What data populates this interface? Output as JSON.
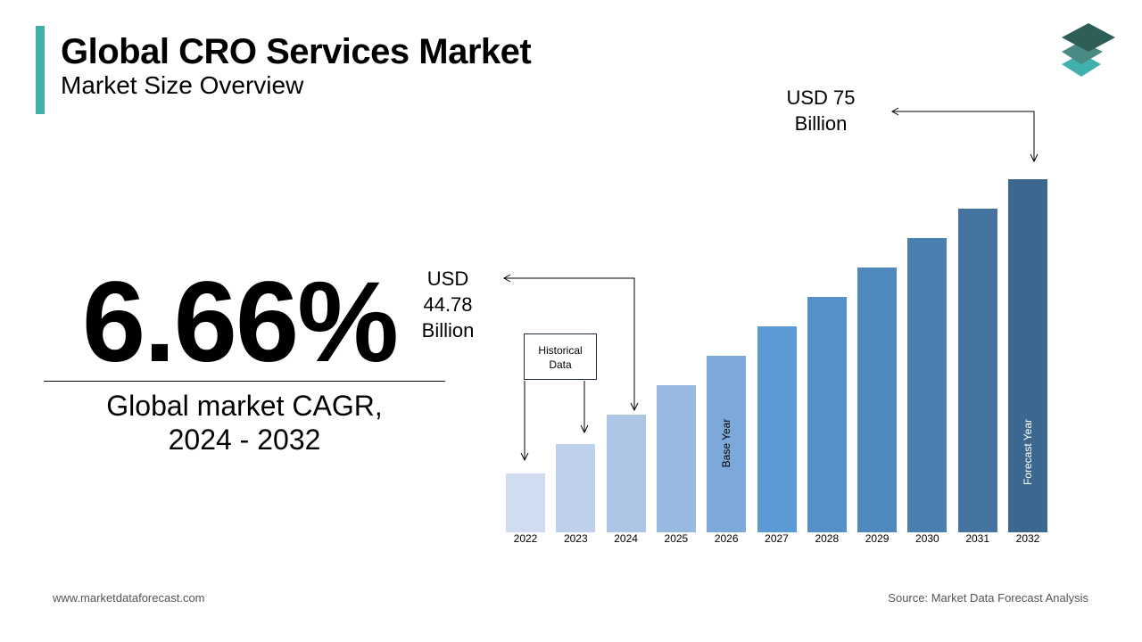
{
  "header": {
    "title": "Global CRO Services Market",
    "subtitle": "Market Size Overview"
  },
  "highlight": {
    "cagr": "6.66%",
    "label_line1": "Global market CAGR,",
    "label_line2": "2024 - 2032"
  },
  "annotations": {
    "value_2024": [
      "USD",
      "44.78",
      "Billion"
    ],
    "value_2032": [
      "USD 75",
      "Billion"
    ],
    "historical": [
      "Historical",
      "Data"
    ],
    "base_year": "Base Year",
    "forecast_year": "Forecast Year"
  },
  "footer": {
    "website": "www.marketdataforecast.com",
    "source": "Source: Market Data Forecast Analysis"
  },
  "colors": {
    "accent": "#3fb1ad",
    "logo": [
      "#2f5e58",
      "#4a8a84",
      "#3fb1ad"
    ]
  },
  "chart_data": {
    "type": "bar",
    "title": "",
    "xlabel": "",
    "ylabel": "",
    "categories": [
      "2022",
      "2023",
      "2024",
      "2025",
      "2026",
      "2027",
      "2028",
      "2029",
      "2030",
      "2031",
      "2032"
    ],
    "values": [
      null,
      null,
      44.78,
      null,
      null,
      null,
      null,
      null,
      null,
      null,
      75
    ],
    "value_unit": "USD Billion",
    "colors": [
      "#d0dcef",
      "#bed0ea",
      "#adc6e6",
      "#98b9e0",
      "#7ca9da",
      "#5a9ad5",
      "#5690c8",
      "#5089bd",
      "#4b7fb0",
      "#44739f",
      "#3c6890"
    ],
    "grid": false,
    "legend": "none"
  }
}
